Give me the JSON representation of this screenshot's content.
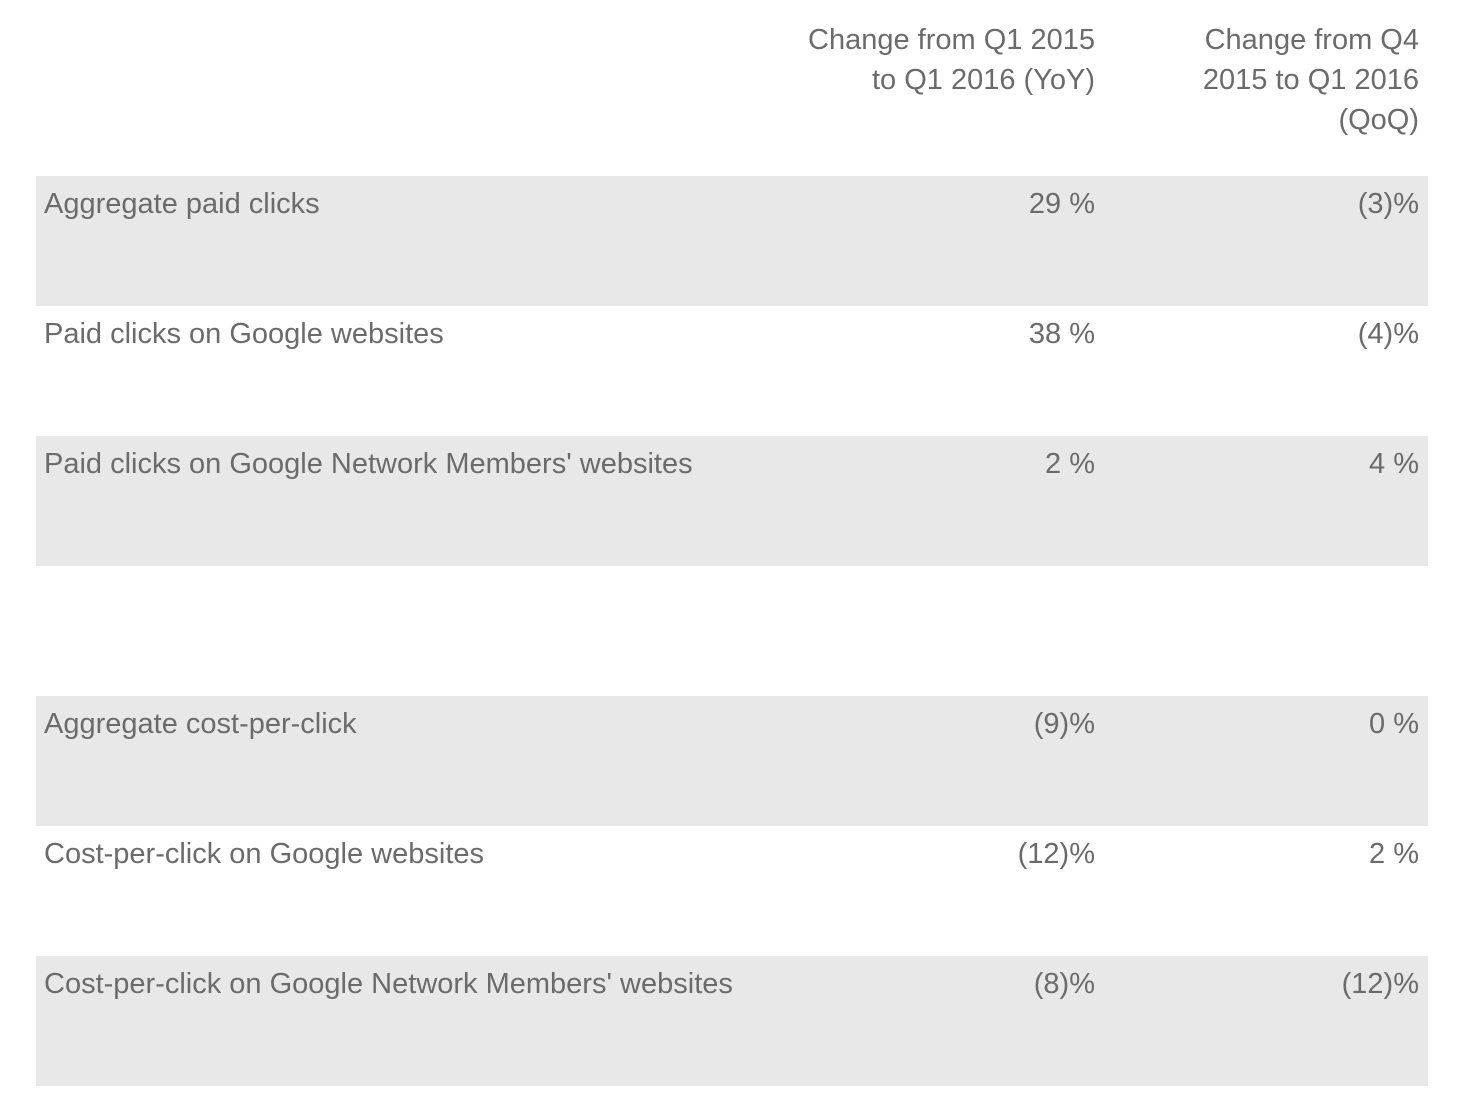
{
  "table": {
    "headers": {
      "yoy": "Change from Q1 2015\nto Q1 2016 (YoY)",
      "qoq": "Change from Q4\n2015 to Q1 2016\n(QoQ)"
    },
    "rows": [
      {
        "label": "Aggregate paid clicks",
        "yoy": "29 %",
        "qoq": "(3)%"
      },
      {
        "label": "Paid clicks on Google websites",
        "yoy": "38 %",
        "qoq": "(4)%"
      },
      {
        "label": "Paid clicks on Google Network Members' websites",
        "yoy": "2 %",
        "qoq": "4 %"
      },
      {
        "label": "Aggregate cost-per-click",
        "yoy": "(9)%",
        "qoq": "0 %"
      },
      {
        "label": "Cost-per-click on Google websites",
        "yoy": "(12)%",
        "qoq": "2 %"
      },
      {
        "label": "Cost-per-click on Google Network Members' websites",
        "yoy": "(8)%",
        "qoq": "(12)%"
      }
    ]
  }
}
